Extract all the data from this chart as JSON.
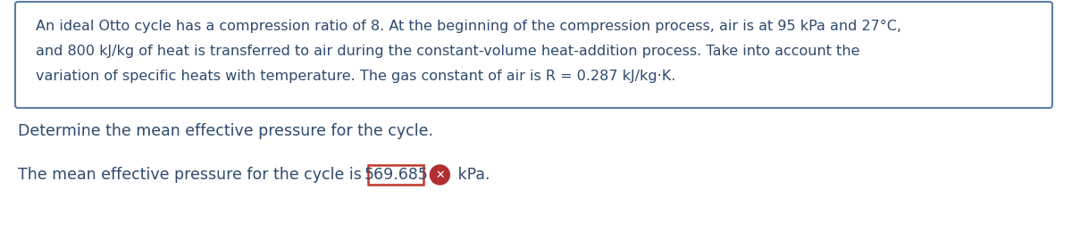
{
  "box_text_line1": "An ideal Otto cycle has a compression ratio of 8. At the beginning of the compression process, air is at 95 kPa and 27°C,",
  "box_text_line2": "and 800 kJ/kg of heat is transferred to air during the constant-volume heat-addition process. Take into account the",
  "box_text_line3": "variation of specific heats with temperature. The gas constant of air is R = 0.287 kJ/kg·K.",
  "question_text": "Determine the mean effective pressure for the cycle.",
  "answer_prefix": "The mean effective pressure for the cycle is ",
  "answer_value": "569.685",
  "answer_suffix": " kPa.",
  "text_color": "#2e4a6e",
  "box_border_color": "#5b7fa6",
  "answer_box_border_color": "#c0392b",
  "answer_icon_color": "#b03030",
  "bg_color": "#ffffff",
  "font_size_box": 11.5,
  "font_size_question": 12.5,
  "font_size_answer": 12.5,
  "font_size_value": 12.5
}
